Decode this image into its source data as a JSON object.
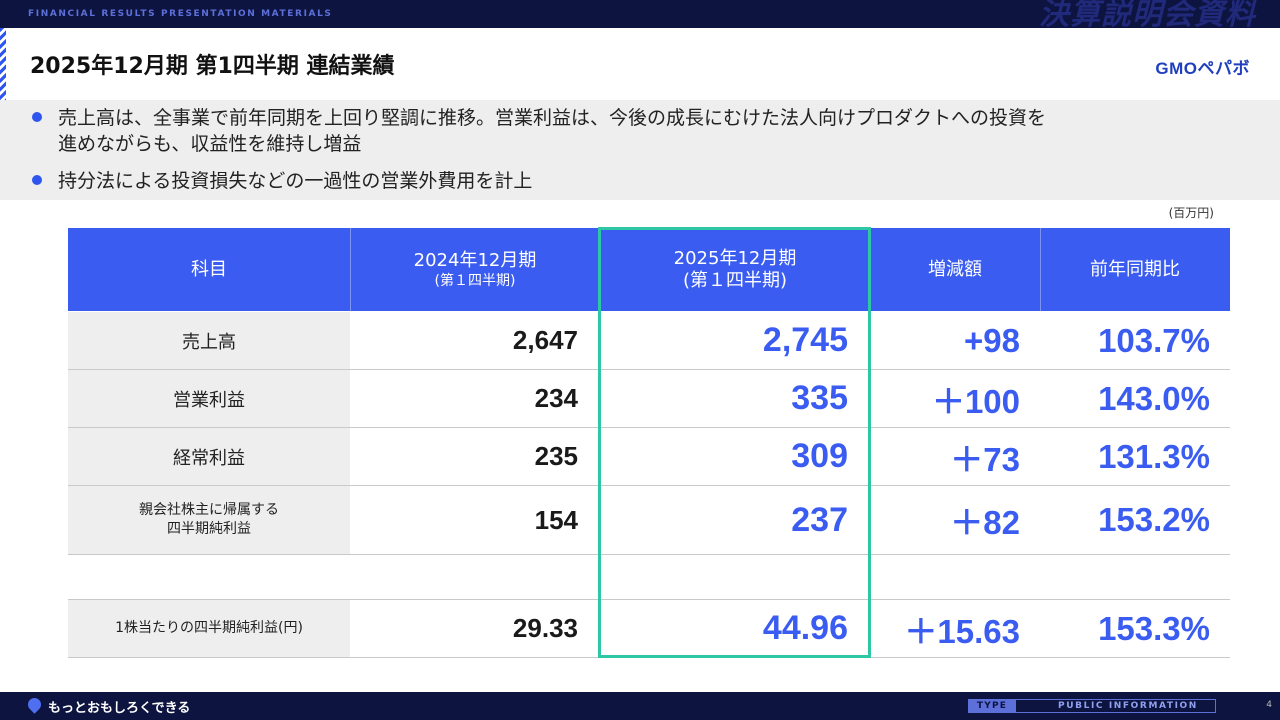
{
  "header": {
    "banner_label": "FINANCIAL RESULTS PRESENTATION MATERIALS",
    "watermark": "決算説明会資料",
    "title": "2025年12月期 第1四半期 連結業績",
    "logo": "GMOペパボ"
  },
  "bullets": {
    "item1_line1": "売上高は、全事業で前年同期を上回り堅調に推移。営業利益は、今後の成長にむけた法人向けプロダクトへの投資を",
    "item1_line2": "進めながらも、収益性を維持し増益",
    "item2": "持分法による投資損失などの一過性の営業外費用を計上"
  },
  "table": {
    "unit": "(百万円)",
    "headers": {
      "item": "科目",
      "prev_line1": "2024年12月期",
      "prev_line2": "(第１四半期)",
      "cur_line1": "2025年12月期",
      "cur_line2": "(第１四半期)",
      "diff": "増減額",
      "ratio": "前年同期比"
    },
    "rows": [
      {
        "label": "売上高",
        "prev": "2,647",
        "cur": "2,745",
        "diff": "+98",
        "ratio": "103.7%"
      },
      {
        "label": "営業利益",
        "prev": "234",
        "cur": "335",
        "diff": "＋100",
        "ratio": "143.0%"
      },
      {
        "label": "経常利益",
        "prev": "235",
        "cur": "309",
        "diff": "＋73",
        "ratio": "131.3%"
      },
      {
        "label_line1": "親会社株主に帰属する",
        "label_line2": "四半期純利益",
        "prev": "154",
        "cur": "237",
        "diff": "＋82",
        "ratio": "153.2%"
      },
      {
        "label": "1株当たりの四半期純利益(円)",
        "prev": "29.33",
        "cur": "44.96",
        "diff": "＋15.63",
        "ratio": "153.3%"
      }
    ]
  },
  "footer": {
    "slogan": "もっとおもしろくできる",
    "type_label": "TYPE",
    "public_label": "PUBLIC INFORMATION",
    "page_number": "4"
  },
  "colors": {
    "accent": "#3a5cf0",
    "navy": "#0d1440",
    "highlight": "#2ec7a5"
  }
}
